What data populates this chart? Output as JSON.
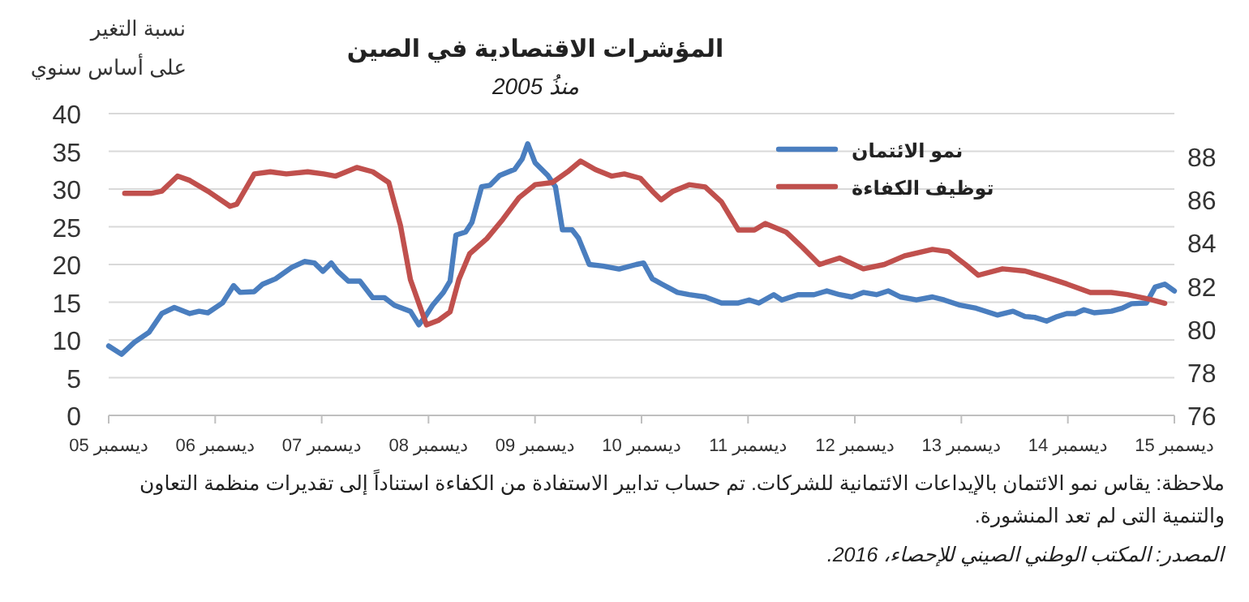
{
  "chart_data": {
    "type": "line",
    "title": "المؤشرات الاقتصادية في الصين",
    "subtitle": "منذُ 2005",
    "ylabel": "نسبة التغير على أساس سنوي",
    "annotations": [
      "ملاحظة: يقاس نمو الائتمان بالإيداعات الائتمانية للشركات. تم حساب تدابير الاستفادة من الكفاءة استناداً إلى تقديرات منظمة التعاون والتنمية التى لم تعد المنشورة.",
      "المصدر: المكتب الوطني الصيني للإحصاء، 2016."
    ],
    "xlim": [
      "2005-12",
      "2015-12"
    ],
    "xticks": [
      {
        "value": "2005-12",
        "label": "ديسمبر 05"
      },
      {
        "value": "2006-12",
        "label": "ديسمبر 06"
      },
      {
        "value": "2007-12",
        "label": "ديسمبر 07"
      },
      {
        "value": "2008-12",
        "label": "ديسمبر 08"
      },
      {
        "value": "2009-12",
        "label": "ديسمبر 09"
      },
      {
        "value": "2010-12",
        "label": "ديسمبر 10"
      },
      {
        "value": "2011-12",
        "label": "ديسمبر 11"
      },
      {
        "value": "2012-12",
        "label": "ديسمبر 12"
      },
      {
        "value": "2013-12",
        "label": "ديسمبر 13"
      },
      {
        "value": "2014-12",
        "label": "ديسمبر 14"
      },
      {
        "value": "2015-12",
        "label": "ديسمبر 15"
      }
    ],
    "ylim": [
      0,
      40
    ],
    "yticks": [
      0,
      5,
      10,
      15,
      20,
      25,
      30,
      35,
      40
    ],
    "y2lim": [
      76,
      90
    ],
    "y2ticks": [
      76,
      78,
      80,
      82,
      84,
      86,
      88
    ],
    "grid": "y",
    "legend": "top",
    "marker": "none",
    "line_style": "solid",
    "series": [
      {
        "name": "نمو الائتمان",
        "color": "#4a7ebf",
        "x": [
          "2005-12-01",
          "2006-01-14",
          "2006-02-27",
          "2006-04-18",
          "2006-06-01",
          "2006-07-14",
          "2006-09-05",
          "2006-10-07",
          "2006-11-06",
          "2006-12-26",
          "2007-02-02",
          "2007-02-24",
          "2007-04-14",
          "2007-05-13",
          "2007-06-26",
          "2007-08-20",
          "2007-10-03",
          "2007-11-06",
          "2007-12-05",
          "2008-01-03",
          "2008-01-25",
          "2008-03-01",
          "2008-04-10",
          "2008-05-24",
          "2008-07-03",
          "2008-08-06",
          "2008-09-30",
          "2008-10-29",
          "2008-11-20",
          "2008-12-15",
          "2009-01-21",
          "2009-02-13",
          "2009-03-05",
          "2009-04-07",
          "2009-04-29",
          "2009-06-01",
          "2009-06-30",
          "2009-08-02",
          "2009-09-22",
          "2009-10-18",
          "2009-11-06",
          "2009-12-01",
          "2010-01-14",
          "2010-02-09",
          "2010-03-05",
          "2010-04-07",
          "2010-04-29",
          "2010-06-05",
          "2010-07-21",
          "2010-09-15",
          "2010-11-13",
          "2010-12-08",
          "2011-01-07",
          "2011-02-09",
          "2011-04-03",
          "2011-05-13",
          "2011-07-07",
          "2011-09-01",
          "2011-10-29",
          "2011-12-05",
          "2012-01-07",
          "2012-02-27",
          "2012-03-26",
          "2012-05-20",
          "2012-07-14",
          "2012-08-27",
          "2012-10-10",
          "2012-11-20",
          "2012-12-30",
          "2013-02-13",
          "2013-03-26",
          "2013-05-06",
          "2013-06-30",
          "2013-08-24",
          "2013-10-03",
          "2013-11-27",
          "2014-01-21",
          "2014-04-03",
          "2014-05-27",
          "2014-07-07",
          "2014-08-09",
          "2014-09-19",
          "2014-10-25",
          "2014-11-27",
          "2014-12-26",
          "2015-01-25",
          "2015-03-01",
          "2015-04-29",
          "2015-06-05",
          "2015-07-07",
          "2015-08-27",
          "2015-09-26",
          "2015-10-29",
          "2015-12-01"
        ],
        "values": [
          9.2,
          8.1,
          9.7,
          11.0,
          13.5,
          14.3,
          13.5,
          13.8,
          13.6,
          14.9,
          17.2,
          16.3,
          16.4,
          17.4,
          18.1,
          19.6,
          20.4,
          20.2,
          19.1,
          20.2,
          19.1,
          17.8,
          17.8,
          15.6,
          15.6,
          14.6,
          13.8,
          12.0,
          13.1,
          14.6,
          16.3,
          17.8,
          23.9,
          24.3,
          25.6,
          30.3,
          30.5,
          31.8,
          32.6,
          34.0,
          36.0,
          33.5,
          31.8,
          30.3,
          24.6,
          24.6,
          23.5,
          20.0,
          19.8,
          19.4,
          20.0,
          20.2,
          18.1,
          17.4,
          16.3,
          16.0,
          15.7,
          14.9,
          14.9,
          15.3,
          14.9,
          16.0,
          15.3,
          16.0,
          16.0,
          16.5,
          16.0,
          15.7,
          16.3,
          16.0,
          16.5,
          15.7,
          15.3,
          15.7,
          15.3,
          14.6,
          14.2,
          13.3,
          13.8,
          13.1,
          13.0,
          12.5,
          13.1,
          13.5,
          13.5,
          14.0,
          13.6,
          13.8,
          14.2,
          14.8,
          14.9,
          17.0,
          17.4,
          16.5
        ]
      },
      {
        "name": "توظيف الكفاءة",
        "color": "#c0504d",
        "axis": "y2",
        "x": [
          "2006-01-25",
          "2006-04-25",
          "2006-06-01",
          "2006-07-25",
          "2006-09-05",
          "2006-11-06",
          "2007-01-21",
          "2007-02-13",
          "2007-04-14",
          "2007-06-08",
          "2007-08-02",
          "2007-10-14",
          "2007-12-08",
          "2008-01-18",
          "2008-03-30",
          "2008-05-24",
          "2008-07-18",
          "2008-08-27",
          "2008-09-30",
          "2008-11-24",
          "2009-01-03",
          "2009-02-13",
          "2009-03-15",
          "2009-04-21",
          "2009-06-19",
          "2009-08-13",
          "2009-10-07",
          "2009-12-01",
          "2010-01-29",
          "2010-03-23",
          "2010-05-06",
          "2010-06-26",
          "2010-08-20",
          "2010-10-03",
          "2010-11-27",
          "2011-01-07",
          "2011-02-06",
          "2011-03-19",
          "2011-05-13",
          "2011-07-07",
          "2011-09-01",
          "2011-10-29",
          "2011-12-23",
          "2012-01-29",
          "2012-04-10",
          "2012-06-04",
          "2012-08-02",
          "2012-10-10",
          "2012-12-30",
          "2013-03-12",
          "2013-05-20",
          "2013-08-24",
          "2013-10-18",
          "2013-12-15",
          "2014-01-28",
          "2014-04-21",
          "2014-07-07",
          "2014-09-19",
          "2014-11-27",
          "2015-02-16",
          "2015-04-29",
          "2015-06-23",
          "2015-09-04",
          "2015-10-29"
        ],
        "values": [
          86.3,
          86.3,
          86.4,
          87.1,
          86.9,
          86.4,
          85.7,
          85.8,
          87.2,
          87.3,
          87.2,
          87.3,
          87.2,
          87.1,
          87.5,
          87.3,
          86.8,
          84.8,
          82.3,
          80.2,
          80.4,
          80.8,
          82.3,
          83.5,
          84.2,
          85.1,
          86.1,
          86.7,
          86.8,
          87.3,
          87.8,
          87.4,
          87.1,
          87.2,
          87.0,
          86.4,
          86.0,
          86.4,
          86.7,
          86.6,
          85.9,
          84.6,
          84.6,
          84.9,
          84.5,
          83.8,
          83.0,
          83.3,
          82.8,
          83.0,
          83.4,
          83.7,
          83.6,
          83.0,
          82.5,
          82.8,
          82.7,
          82.4,
          82.1,
          81.7,
          81.7,
          81.6,
          81.4,
          81.2
        ]
      }
    ]
  }
}
